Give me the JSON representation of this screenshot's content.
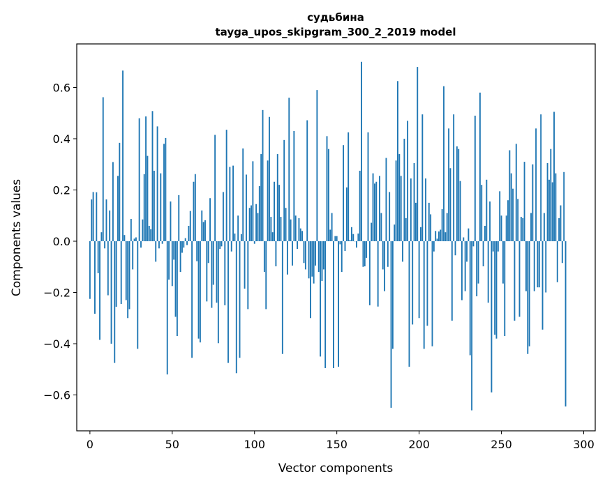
{
  "chart_data": {
    "type": "bar",
    "title_line1": "судьбина",
    "title_line2": "tayga_upos_skipgram_300_2_2019 model",
    "xlabel": "Vector components",
    "ylabel": "Components values",
    "xlim": [
      -8,
      307
    ],
    "ylim": [
      -0.74,
      0.77
    ],
    "xticks": [
      0,
      50,
      100,
      150,
      200,
      250,
      300
    ],
    "xtick_labels": [
      "0",
      "50",
      "100",
      "150",
      "200",
      "250",
      "300"
    ],
    "yticks": [
      -0.6,
      -0.4,
      -0.2,
      0.0,
      0.2,
      0.4,
      0.6
    ],
    "ytick_labels": [
      "−0.6",
      "−0.4",
      "−0.2",
      "0.0",
      "0.2",
      "0.4",
      "0.6"
    ],
    "bar_color": "#1f77b4",
    "values": [
      -0.225,
      0.163,
      0.192,
      -0.283,
      0.191,
      -0.125,
      -0.385,
      0.035,
      0.562,
      -0.028,
      0.163,
      -0.211,
      0.12,
      -0.4,
      0.309,
      -0.475,
      -0.256,
      0.255,
      0.384,
      -0.245,
      0.666,
      0.024,
      -0.23,
      -0.3,
      -0.265,
      0.087,
      -0.11,
      0.01,
      0.015,
      -0.42,
      0.48,
      -0.025,
      0.085,
      0.262,
      0.487,
      0.333,
      0.06,
      0.047,
      0.508,
      0.275,
      -0.08,
      0.448,
      -0.028,
      0.265,
      -0.01,
      0.38,
      0.403,
      -0.52,
      -0.15,
      0.155,
      -0.175,
      -0.072,
      -0.295,
      -0.37,
      0.18,
      -0.12,
      -0.045,
      -0.025,
      0.012,
      -0.015,
      0.06,
      0.118,
      -0.455,
      0.232,
      0.262,
      -0.078,
      -0.38,
      -0.395,
      0.12,
      0.075,
      0.082,
      -0.235,
      -0.085,
      0.168,
      -0.26,
      -0.17,
      0.415,
      -0.24,
      -0.398,
      -0.03,
      -0.02,
      0.192,
      -0.25,
      0.435,
      -0.475,
      0.29,
      -0.04,
      0.295,
      0.03,
      -0.515,
      0.1,
      -0.455,
      0.028,
      0.362,
      -0.185,
      0.26,
      -0.265,
      0.13,
      0.14,
      0.312,
      -0.01,
      0.145,
      0.11,
      0.215,
      0.34,
      0.512,
      -0.12,
      -0.265,
      0.315,
      0.485,
      0.095,
      0.035,
      0.232,
      -0.098,
      0.34,
      0.22,
      0.095,
      -0.44,
      0.395,
      0.13,
      -0.13,
      0.56,
      0.085,
      -0.095,
      0.43,
      0.1,
      -0.03,
      0.09,
      0.05,
      0.04,
      -0.085,
      -0.11,
      0.472,
      -0.145,
      -0.3,
      -0.138,
      -0.165,
      -0.095,
      0.59,
      -0.12,
      -0.45,
      -0.155,
      -0.11,
      -0.495,
      0.41,
      0.36,
      0.045,
      0.11,
      -0.495,
      0.02,
      0.02,
      -0.49,
      -0.012,
      -0.12,
      0.375,
      -0.038,
      0.21,
      0.425,
      0.005,
      0.055,
      0.028,
      0.0,
      -0.025,
      0.03,
      0.275,
      0.7,
      -0.1,
      -0.098,
      -0.065,
      0.425,
      -0.25,
      0.072,
      0.265,
      0.225,
      0.232,
      -0.255,
      0.255,
      0.11,
      -0.11,
      -0.195,
      0.325,
      -0.1,
      0.192,
      -0.65,
      -0.42,
      0.065,
      0.315,
      0.625,
      0.34,
      0.255,
      -0.08,
      0.4,
      0.09,
      0.47,
      -0.49,
      0.245,
      -0.325,
      0.305,
      0.15,
      0.68,
      -0.3,
      0.055,
      0.495,
      -0.42,
      0.245,
      -0.33,
      0.15,
      0.105,
      -0.41,
      -0.04,
      0.04,
      0.01,
      0.038,
      0.045,
      0.125,
      0.605,
      0.035,
      0.11,
      0.44,
      0.285,
      -0.31,
      0.495,
      -0.055,
      0.37,
      0.36,
      0.235,
      -0.23,
      0.015,
      -0.195,
      -0.08,
      0.05,
      -0.445,
      -0.66,
      -0.02,
      0.49,
      -0.215,
      -0.165,
      0.58,
      0.22,
      -0.098,
      0.06,
      0.24,
      -0.24,
      0.155,
      -0.59,
      -0.04,
      -0.365,
      -0.38,
      -0.04,
      0.195,
      0.1,
      -0.165,
      -0.37,
      0.1,
      0.16,
      0.355,
      0.265,
      0.205,
      -0.31,
      0.38,
      0.165,
      -0.295,
      0.095,
      0.09,
      0.31,
      -0.195,
      -0.44,
      -0.41,
      0.11,
      0.3,
      -0.195,
      0.44,
      -0.18,
      -0.18,
      0.495,
      -0.345,
      0.11,
      -0.2,
      0.305,
      0.24,
      0.36,
      0.23,
      0.505,
      0.265,
      -0.16,
      0.09,
      0.14,
      -0.085,
      0.27,
      -0.645
    ]
  }
}
